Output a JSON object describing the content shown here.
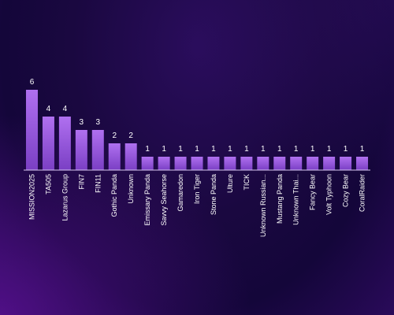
{
  "chart_data": {
    "type": "bar",
    "categories": [
      "MISSION2025",
      "TA505",
      "Lazarus Group",
      "FIN7",
      "FIN11",
      "Gothic Panda",
      "Unknown",
      "Emissary Panda",
      "Savvy Seahorse",
      "Gamaredon",
      "Iron Tiger",
      "Stone Panda",
      "Ulture",
      "TICK",
      "Unknown Russian...",
      "Mustang Panda",
      "Unknown Thai...",
      "Fancy Bear",
      "Volt Typhoon",
      "Cozy Bear",
      "CoralRaider"
    ],
    "values": [
      6,
      4,
      4,
      3,
      3,
      2,
      2,
      1,
      1,
      1,
      1,
      1,
      1,
      1,
      1,
      1,
      1,
      1,
      1,
      1,
      1
    ],
    "title": "",
    "xlabel": "",
    "ylabel": "",
    "ylim": [
      0,
      6
    ],
    "grid": false,
    "data_labels": true,
    "colors": {
      "bar_top": "#b070f0",
      "bar_bottom": "#7a3fc4",
      "axis": "#d8c8f0",
      "text": "#ffffff",
      "background": "#1a0840"
    }
  }
}
